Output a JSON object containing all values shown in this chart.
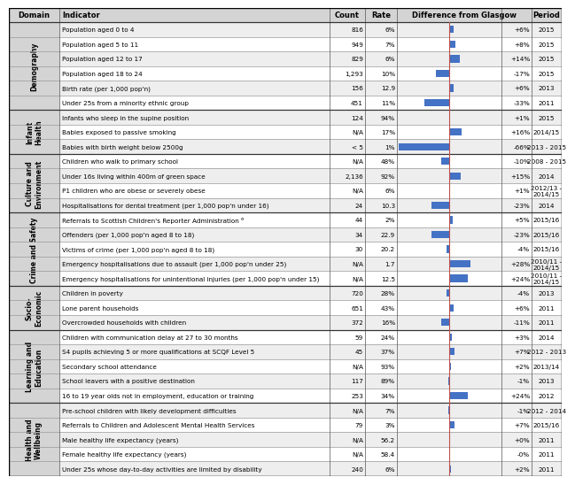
{
  "header_bg": "#d4d4d4",
  "row_bg_odd": "#eeeeee",
  "row_bg_even": "#ffffff",
  "domain_bg": "#d4d4d4",
  "bar_color": "#4472c4",
  "divider_color": "#c0504d",
  "rows": [
    {
      "domain": "Demography",
      "domain_rows": 6,
      "indicator": "Population aged 0 to 4",
      "count": "816",
      "rate": "6%",
      "diff": "+6%",
      "diff_val": 6,
      "period": "2015",
      "multi": false
    },
    {
      "domain": "",
      "domain_rows": 0,
      "indicator": "Population aged 5 to 11",
      "count": "949",
      "rate": "7%",
      "diff": "+8%",
      "diff_val": 8,
      "period": "2015",
      "multi": false
    },
    {
      "domain": "",
      "domain_rows": 0,
      "indicator": "Population aged 12 to 17",
      "count": "829",
      "rate": "6%",
      "diff": "+14%",
      "diff_val": 14,
      "period": "2015",
      "multi": false
    },
    {
      "domain": "",
      "domain_rows": 0,
      "indicator": "Population aged 18 to 24",
      "count": "1,293",
      "rate": "10%",
      "diff": "-17%",
      "diff_val": -17,
      "period": "2015",
      "multi": false
    },
    {
      "domain": "",
      "domain_rows": 0,
      "indicator": "Birth rate (per 1,000 pop'n)",
      "count": "156",
      "rate": "12.9",
      "diff": "+6%",
      "diff_val": 6,
      "period": "2013",
      "multi": false
    },
    {
      "domain": "",
      "domain_rows": 0,
      "indicator": "Under 25s from a minority ethnic group",
      "count": "451",
      "rate": "11%",
      "diff": "-33%",
      "diff_val": -33,
      "period": "2011",
      "multi": false
    },
    {
      "domain": "Infant\nHealth",
      "domain_rows": 3,
      "indicator": "Infants who sleep in the supine position",
      "count": "124",
      "rate": "94%",
      "diff": "+1%",
      "diff_val": 1,
      "period": "2015",
      "multi": false
    },
    {
      "domain": "",
      "domain_rows": 0,
      "indicator": "Babies exposed to passive smoking",
      "count": "N/A",
      "rate": "17%",
      "diff": "+16%",
      "diff_val": 16,
      "period": "2014/15",
      "multi": false
    },
    {
      "domain": "",
      "domain_rows": 0,
      "indicator": "Babies with birth weight below 2500g",
      "count": "< 5",
      "rate": "1%",
      "diff": "-66%",
      "diff_val": -66,
      "period": "2013 - 2015",
      "multi": false
    },
    {
      "domain": "Culture and\nEnvironment",
      "domain_rows": 4,
      "indicator": "Children who walk to primary school",
      "count": "N/A",
      "rate": "48%",
      "diff": "-10%",
      "diff_val": -10,
      "period": "2008 - 2015",
      "multi": false
    },
    {
      "domain": "",
      "domain_rows": 0,
      "indicator": "Under 16s living within 400m of green space",
      "count": "2,136",
      "rate": "92%",
      "diff": "+15%",
      "diff_val": 15,
      "period": "2014",
      "multi": false
    },
    {
      "domain": "",
      "domain_rows": 0,
      "indicator": "P1 children who are obese or severely obese",
      "count": "N/A",
      "rate": "6%",
      "diff": "+1%",
      "diff_val": 1,
      "period": "2012/13 -\n2014/15",
      "multi": true
    },
    {
      "domain": "",
      "domain_rows": 0,
      "indicator": "Hospitalisations for dental treatment (per 1,000 pop'n under 16)",
      "count": "24",
      "rate": "10.3",
      "diff": "-23%",
      "diff_val": -23,
      "period": "2014",
      "multi": false
    },
    {
      "domain": "Crime and Safety",
      "domain_rows": 5,
      "indicator": "Referrals to Scottish Children's Reporter Administration ⁶",
      "count": "44",
      "rate": "2%",
      "diff": "+5%",
      "diff_val": 5,
      "period": "2015/16",
      "multi": false
    },
    {
      "domain": "",
      "domain_rows": 0,
      "indicator": "Offenders (per 1,000 pop'n aged 8 to 18)",
      "count": "34",
      "rate": "22.9",
      "diff": "-23%",
      "diff_val": -23,
      "period": "2015/16",
      "multi": false
    },
    {
      "domain": "",
      "domain_rows": 0,
      "indicator": "Victims of crime (per 1,000 pop'n aged 8 to 18)",
      "count": "30",
      "rate": "20.2",
      "diff": "-4%",
      "diff_val": -4,
      "period": "2015/16",
      "multi": false
    },
    {
      "domain": "",
      "domain_rows": 0,
      "indicator": "Emergency hospitalisations due to assault (per 1,000 pop'n under 25)",
      "count": "N/A",
      "rate": "1.7",
      "diff": "+28%",
      "diff_val": 28,
      "period": "2010/11 -\n2014/15",
      "multi": true
    },
    {
      "domain": "",
      "domain_rows": 0,
      "indicator": "Emergency hospitalisations for unintentional injuries (per 1,000 pop'n under 15)",
      "count": "N/A",
      "rate": "12.5",
      "diff": "+24%",
      "diff_val": 24,
      "period": "2010/11 -\n2014/15",
      "multi": true
    },
    {
      "domain": "Socio-\nEconomic",
      "domain_rows": 3,
      "indicator": "Children in poverty",
      "count": "720",
      "rate": "28%",
      "diff": "-4%",
      "diff_val": -4,
      "period": "2013",
      "multi": false
    },
    {
      "domain": "",
      "domain_rows": 0,
      "indicator": "Lone parent households",
      "count": "651",
      "rate": "43%",
      "diff": "+6%",
      "diff_val": 6,
      "period": "2011",
      "multi": false
    },
    {
      "domain": "",
      "domain_rows": 0,
      "indicator": "Overcrowded households with children",
      "count": "372",
      "rate": "16%",
      "diff": "-11%",
      "diff_val": -11,
      "period": "2011",
      "multi": false
    },
    {
      "domain": "Learning and\nEducation",
      "domain_rows": 5,
      "indicator": "Children with communication delay at 27 to 30 months",
      "count": "59",
      "rate": "24%",
      "diff": "+3%",
      "diff_val": 3,
      "period": "2014",
      "multi": false
    },
    {
      "domain": "",
      "domain_rows": 0,
      "indicator": "S4 pupils achieving 5 or more qualifications at SCQF Level 5",
      "count": "45",
      "rate": "37%",
      "diff": "+7%",
      "diff_val": 7,
      "period": "2012 - 2013",
      "multi": false
    },
    {
      "domain": "",
      "domain_rows": 0,
      "indicator": "Secondary school attendance",
      "count": "N/A",
      "rate": "93%",
      "diff": "+2%",
      "diff_val": 2,
      "period": "2013/14",
      "multi": false
    },
    {
      "domain": "",
      "domain_rows": 0,
      "indicator": "School leavers with a positive destination",
      "count": "117",
      "rate": "89%",
      "diff": "-1%",
      "diff_val": -1,
      "period": "2013",
      "multi": false
    },
    {
      "domain": "",
      "domain_rows": 0,
      "indicator": "16 to 19 year olds not in employment, education or training",
      "count": "253",
      "rate": "34%",
      "diff": "+24%",
      "diff_val": 24,
      "period": "2012",
      "multi": false
    },
    {
      "domain": "Health and\nWellbeing",
      "domain_rows": 5,
      "indicator": "Pre-school children with likely development difficulties",
      "count": "N/A",
      "rate": "7%",
      "diff": "-1%",
      "diff_val": -1,
      "period": "2012 - 2014",
      "multi": false
    },
    {
      "domain": "",
      "domain_rows": 0,
      "indicator": "Referrals to Children and Adolescent Mental Health Services",
      "count": "79",
      "rate": "3%",
      "diff": "+7%",
      "diff_val": 7,
      "period": "2015/16",
      "multi": false
    },
    {
      "domain": "",
      "domain_rows": 0,
      "indicator": "Male healthy life expectancy (years)",
      "count": "N/A",
      "rate": "56.2",
      "diff": "+0%",
      "diff_val": 0,
      "period": "2011",
      "multi": false
    },
    {
      "domain": "",
      "domain_rows": 0,
      "indicator": "Female healthy life expectancy (years)",
      "count": "N/A",
      "rate": "58.4",
      "diff": "-0%",
      "diff_val": 0,
      "period": "2011",
      "multi": false
    },
    {
      "domain": "",
      "domain_rows": 0,
      "indicator": "Under 25s whose day-to-day activities are limited by disability",
      "count": "240",
      "rate": "6%",
      "diff": "+2%",
      "diff_val": 2,
      "period": "2011",
      "multi": false
    }
  ]
}
